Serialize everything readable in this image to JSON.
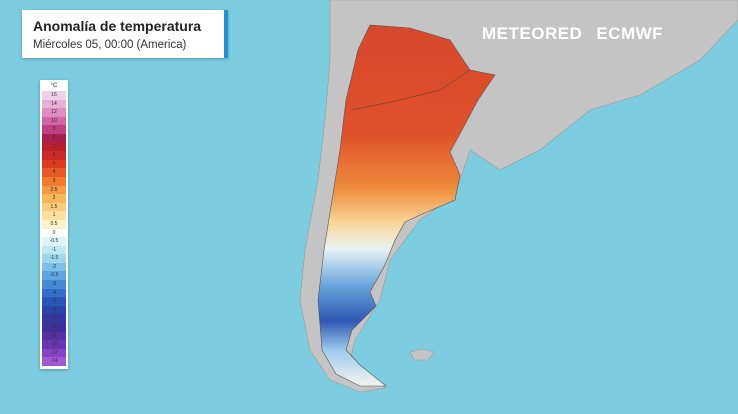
{
  "header": {
    "title": "Anomalía de temperatura",
    "subtitle": "Miércoles 05, 00:00 (America)"
  },
  "brand": {
    "meteored": "METEORED",
    "ecmwf": "ECMWF"
  },
  "legend": {
    "unit": "°C",
    "items": [
      {
        "label": "16",
        "color": "#f0d0e6"
      },
      {
        "label": "14",
        "color": "#e8b0d6"
      },
      {
        "label": "12",
        "color": "#de8cc4"
      },
      {
        "label": "10",
        "color": "#d066a8"
      },
      {
        "label": "9",
        "color": "#bf3f84"
      },
      {
        "label": "8",
        "color": "#a8204e"
      },
      {
        "label": "7",
        "color": "#b8202c"
      },
      {
        "label": "6",
        "color": "#cc2a24"
      },
      {
        "label": "5",
        "color": "#dd3c22"
      },
      {
        "label": "4",
        "color": "#e85a26"
      },
      {
        "label": "3",
        "color": "#ef7a30"
      },
      {
        "label": "2.5",
        "color": "#f39a42"
      },
      {
        "label": "2",
        "color": "#f6b65a"
      },
      {
        "label": "1.5",
        "color": "#f8cc7a"
      },
      {
        "label": "1",
        "color": "#fae29e"
      },
      {
        "label": "0.5",
        "color": "#fcf2c8"
      },
      {
        "label": "0",
        "color": "#ffffff"
      },
      {
        "label": "-0.5",
        "color": "#def4f6"
      },
      {
        "label": "-1",
        "color": "#bfe8f2"
      },
      {
        "label": "-1.5",
        "color": "#9ed6ee"
      },
      {
        "label": "-2",
        "color": "#7cbfe8"
      },
      {
        "label": "-2.5",
        "color": "#5ea6e0"
      },
      {
        "label": "-3",
        "color": "#468ad6"
      },
      {
        "label": "-4",
        "color": "#346ec8"
      },
      {
        "label": "-5",
        "color": "#2a56b8"
      },
      {
        "label": "-6",
        "color": "#2c44a6"
      },
      {
        "label": "-7",
        "color": "#34389c"
      },
      {
        "label": "-8",
        "color": "#402f98"
      },
      {
        "label": "-9",
        "color": "#5430a0"
      },
      {
        "label": "-10",
        "color": "#6a36b0"
      },
      {
        "label": "-12",
        "color": "#8444c4"
      },
      {
        "label": "-14",
        "color": "#a058d6"
      }
    ]
  }
}
